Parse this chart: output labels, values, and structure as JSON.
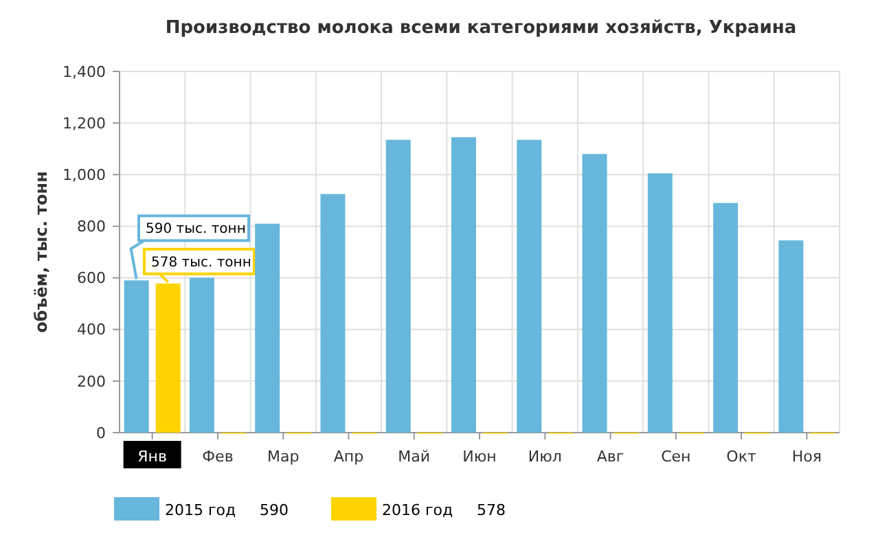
{
  "chart_data": {
    "type": "bar",
    "title": "Производство молока всеми категориями хозяйств, Украина",
    "ylabel": "объём, тыс. тонн",
    "categories": [
      "Янв",
      "Фев",
      "Мар",
      "Апр",
      "Май",
      "Июн",
      "Июл",
      "Авг",
      "Сен",
      "Окт",
      "Ноя"
    ],
    "series": [
      {
        "name": "2015 год",
        "color": "#67b7dc",
        "values": [
          590,
          600,
          810,
          925,
          1135,
          1145,
          1135,
          1080,
          1005,
          890,
          745
        ]
      },
      {
        "name": "2016 год",
        "color": "#fdd400",
        "values": [
          578,
          0,
          0,
          0,
          0,
          0,
          0,
          0,
          0,
          0,
          0
        ]
      }
    ],
    "ylim": [
      0,
      1400
    ],
    "yticks": [
      0,
      {
        "value": 200,
        "label": "200"
      },
      {
        "value": 400,
        "label": "400"
      },
      {
        "value": 600,
        "label": "600"
      },
      {
        "value": 800,
        "label": "800"
      },
      {
        "value": 1000,
        "label": "1,000"
      },
      {
        "value": 1200,
        "label": "1,200"
      },
      {
        "value": 1400,
        "label": "1,400"
      }
    ],
    "grid": true,
    "legend": "bottom",
    "annotations": [
      "590 тыс. тонн",
      "578 тыс. тонн",
      "590",
      "578"
    ]
  }
}
